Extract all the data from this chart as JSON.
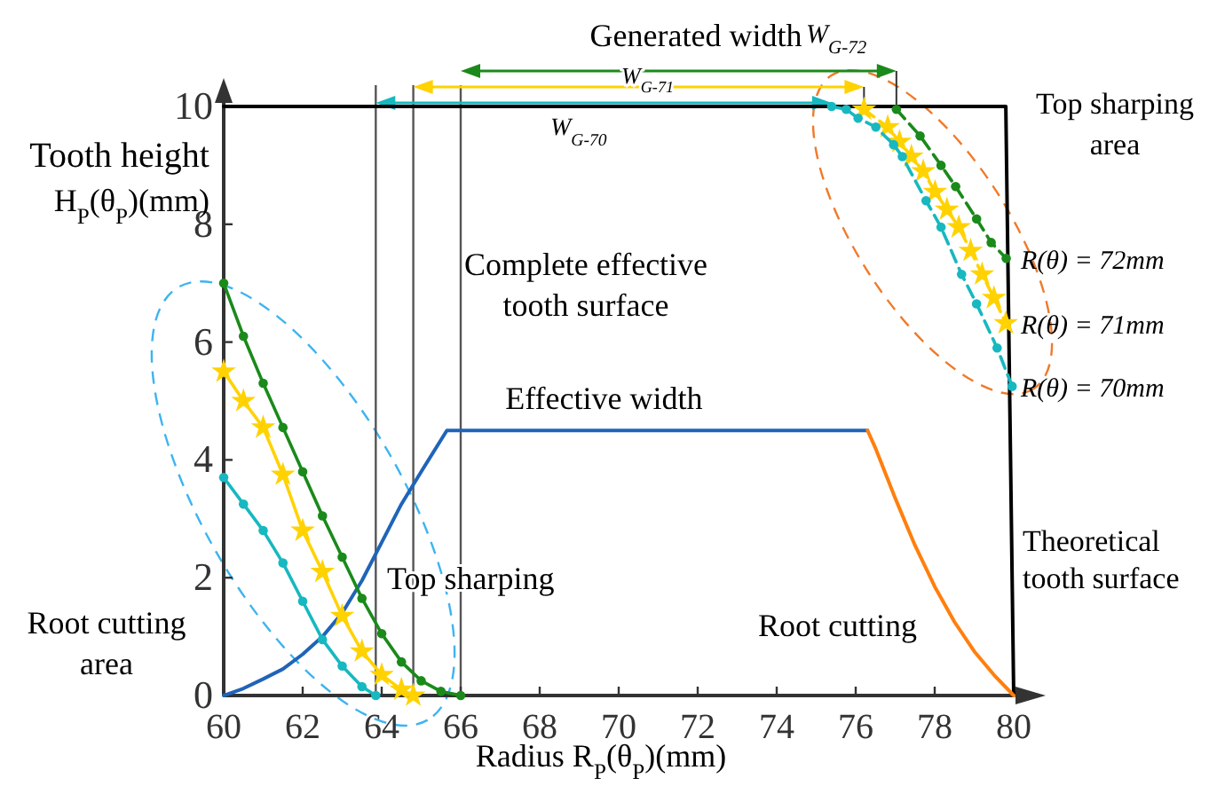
{
  "chart_data": {
    "type": "line",
    "xlabel": "Radius R$_{P}$(θ$_{P}$)(mm)",
    "ylabel": "Tooth height H$_{P}$(θ$_{P}$)(mm)",
    "xlim": [
      60,
      80
    ],
    "xticks": [
      60,
      62,
      64,
      66,
      68,
      70,
      72,
      74,
      76,
      78,
      80
    ],
    "ylim": [
      0,
      10
    ],
    "yticks": [
      0,
      2,
      4,
      6,
      8,
      10
    ],
    "grid": false,
    "series": [
      {
        "name": "Theoretical tooth surface",
        "color": "#000000",
        "marker": "none",
        "line_style": "solid",
        "x": [
          60,
          79.8,
          80
        ],
        "values": [
          10,
          10,
          0
        ]
      },
      {
        "name": "Effective width",
        "color": "#1f64b8",
        "marker": "none",
        "line_style": "solid",
        "x": [
          60,
          60.5,
          61,
          61.5,
          62,
          62.5,
          63,
          63.5,
          64,
          64.5,
          65,
          65.65,
          76.3
        ],
        "values": [
          0,
          0.12,
          0.28,
          0.45,
          0.7,
          1.0,
          1.4,
          1.95,
          2.6,
          3.25,
          3.8,
          4.5,
          4.5
        ]
      },
      {
        "name": "Root cutting",
        "color": "#ff7f0e",
        "marker": "none",
        "line_style": "solid",
        "x": [
          76.3,
          76.5,
          77,
          77.5,
          78,
          78.5,
          79,
          79.5,
          80
        ],
        "values": [
          4.5,
          4.2,
          3.35,
          2.55,
          1.85,
          1.25,
          0.75,
          0.35,
          0
        ]
      },
      {
        "color": "#1a8a1a",
        "marker": "circle",
        "line_style": "solid",
        "x": [
          60,
          60.5,
          61,
          61.5,
          62,
          62.5,
          63,
          63.5,
          64,
          64.5,
          65,
          65.5,
          66
        ],
        "values": [
          7.0,
          6.1,
          5.3,
          4.55,
          3.8,
          3.05,
          2.35,
          1.65,
          1.05,
          0.57,
          0.25,
          0.07,
          0
        ]
      },
      {
        "color": "#ffd200",
        "marker": "star",
        "line_style": "solid",
        "x": [
          60,
          60.5,
          61,
          61.5,
          62,
          62.5,
          63,
          63.5,
          64,
          64.5,
          64.8
        ],
        "values": [
          5.5,
          5.0,
          4.55,
          3.75,
          2.8,
          2.1,
          1.35,
          0.75,
          0.35,
          0.1,
          0
        ]
      },
      {
        "color": "#17b8c0",
        "marker": "circle",
        "line_style": "solid",
        "x": [
          60,
          60.5,
          61,
          61.5,
          62,
          62.5,
          63,
          63.5,
          63.85
        ],
        "values": [
          3.7,
          3.25,
          2.8,
          2.25,
          1.6,
          0.95,
          0.5,
          0.15,
          0
        ]
      },
      {
        "name": "R(θ) = 72mm",
        "color": "#1a8a1a",
        "marker": "circle",
        "line_style": "dashed",
        "x": [
          77.03,
          77.63,
          78.16,
          78.53,
          79.06,
          79.43,
          79.81
        ],
        "values": [
          9.95,
          9.5,
          9.0,
          8.64,
          8.09,
          7.69,
          7.42
        ]
      },
      {
        "name": "R(θ) = 71mm",
        "color": "#ffd200",
        "marker": "star",
        "line_style": "dashed",
        "x": [
          76.21,
          76.81,
          77.11,
          77.41,
          77.71,
          78.01,
          78.31,
          78.61,
          78.91,
          79.2,
          79.5,
          79.8
        ],
        "values": [
          9.95,
          9.65,
          9.4,
          9.15,
          8.9,
          8.55,
          8.25,
          7.95,
          7.55,
          7.15,
          6.75,
          6.32
        ]
      },
      {
        "name": "R(θ) = 70mm",
        "color": "#17b8c0",
        "marker": "circle",
        "line_style": "dashed",
        "x": [
          75.39,
          75.76,
          76.06,
          76.51,
          76.96,
          77.18,
          77.78,
          78.16,
          78.68,
          79.06,
          79.58,
          79.96
        ],
        "values": [
          10.0,
          9.95,
          9.8,
          9.65,
          9.35,
          9.15,
          8.4,
          7.95,
          7.15,
          6.65,
          5.9,
          5.25
        ]
      }
    ],
    "ref_lines": [
      {
        "axis": "x",
        "value": 66,
        "color": "#555555"
      },
      {
        "axis": "x",
        "value": 64.8,
        "color": "#555555"
      },
      {
        "axis": "x",
        "value": 63.85,
        "color": "#555555"
      }
    ],
    "annotations": [
      "Generated width",
      "W$_{G-72}$",
      "W$_{G-71}$",
      "W$_{G-70}$",
      "Top sharping area",
      "Complete effective tooth surface",
      "Top sharping",
      "Root cutting area"
    ]
  }
}
